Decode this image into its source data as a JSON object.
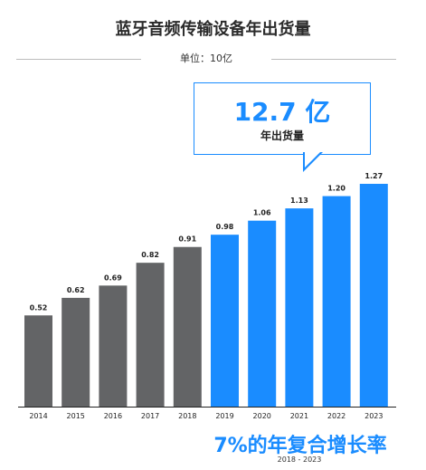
{
  "title": "蓝牙音频传输设备年出货量",
  "unit_label": "单位：10亿",
  "callout": {
    "value": "12.7 亿",
    "label": "年出货量"
  },
  "cagr": {
    "text": "7%的年复合增长率",
    "years": "2018 - 2023"
  },
  "colors": {
    "historical": "#636466",
    "forecast": "#1a8cff",
    "axis": "#222222"
  },
  "chart_data": {
    "type": "bar",
    "title": "蓝牙音频传输设备年出货量",
    "ylabel": "单位：10亿",
    "categories": [
      "2014",
      "2015",
      "2016",
      "2017",
      "2018",
      "2019",
      "2020",
      "2021",
      "2022",
      "2023"
    ],
    "values": [
      0.52,
      0.62,
      0.69,
      0.82,
      0.91,
      0.98,
      1.06,
      1.13,
      1.2,
      1.27
    ],
    "value_labels": [
      "0.52",
      "0.62",
      "0.69",
      "0.82",
      "0.91",
      "0.98",
      "1.06",
      "1.13",
      "1.20",
      "1.27"
    ],
    "forecast_from_index": 5,
    "ylim": [
      0,
      1.27
    ],
    "grid": false
  }
}
